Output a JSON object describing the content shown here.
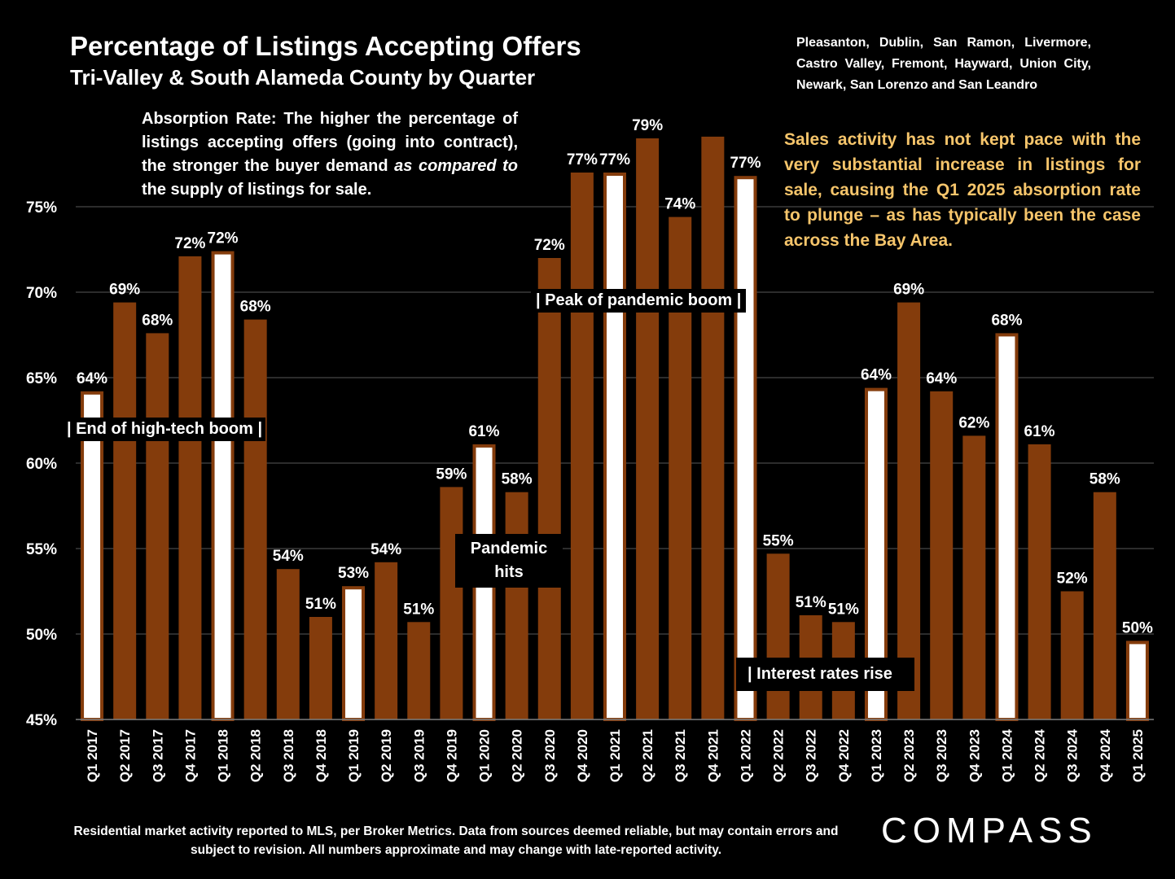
{
  "header": {
    "title": "Percentage of Listings Accepting Offers",
    "subtitle": "Tri-Valley & South Alameda County by Quarter",
    "cities": "Pleasanton, Dublin, San Ramon, Livermore, Castro Valley, Fremont, Hayward, Union City, Newark, San Lorenzo and San Leandro"
  },
  "absorption_note": {
    "part1": "Absorption Rate: The higher the percentage of listings accepting offers (going into contract), the stronger the buyer demand ",
    "emph": "as compared to",
    "part2": " the supply of listings for sale."
  },
  "sales_note": "Sales activity has not kept pace with the very substantial increase in listings for sale, causing the Q1 2025 absorption rate to plunge – as has typically been the case across the Bay Area.",
  "annotations": {
    "end_boom": "|  End of high-tech boom  |",
    "peak": "| Peak of pandemic boom |",
    "pandemic": "Pandemic hits",
    "rates": "| Interest rates rise"
  },
  "footer": "Residential market activity reported to MLS, per Broker Metrics. Data from sources deemed reliable, but may contain errors and subject to revision. All numbers approximate and may change with late-reported activity.",
  "logo": "COMPASS",
  "colors": {
    "bar": "#843c0c",
    "q1_bar": "#ffffff",
    "note": "#f6c56b"
  },
  "chart_data": {
    "type": "bar",
    "categories": [
      "Q1 2017",
      "Q2 2017",
      "Q3 2017",
      "Q4 2017",
      "Q1 2018",
      "Q2 2018",
      "Q3 2018",
      "Q4 2018",
      "Q1 2019",
      "Q2 2019",
      "Q3 2019",
      "Q4 2019",
      "Q1 2020",
      "Q2 2020",
      "Q3 2020",
      "Q4 2020",
      "Q1 2021",
      "Q2 2021",
      "Q3 2021",
      "Q4 2021",
      "Q1 2022",
      "Q2 2022",
      "Q3 2022",
      "Q4 2022",
      "Q1 2023",
      "Q2 2023",
      "Q3 2023",
      "Q4 2023",
      "Q1 2024",
      "Q2 2024",
      "Q3 2024",
      "Q4 2024",
      "Q1 2025"
    ],
    "values": [
      64.2,
      69.4,
      67.6,
      72.1,
      72.4,
      68.4,
      53.8,
      51.0,
      52.8,
      54.2,
      50.7,
      58.6,
      61.1,
      58.3,
      72.0,
      77.0,
      77.0,
      79.0,
      74.4,
      79.1,
      76.8,
      54.7,
      51.1,
      50.7,
      64.4,
      69.4,
      64.2,
      61.6,
      67.6,
      61.1,
      52.5,
      58.3,
      49.6
    ],
    "labels": [
      "64%",
      "69%",
      "68%",
      "72%",
      "72%",
      "68%",
      "54%",
      "51%",
      "53%",
      "54%",
      "51%",
      "59%",
      "61%",
      "58%",
      "72%",
      "77%",
      "77%",
      "79%",
      "74%",
      "",
      "77%",
      "55%",
      "51%",
      "51%",
      "64%",
      "69%",
      "64%",
      "62%",
      "68%",
      "61%",
      "52%",
      "58%",
      "50%"
    ],
    "highlight_q1": true,
    "ylim": [
      45,
      80
    ],
    "yticks": [
      45,
      50,
      55,
      60,
      65,
      70,
      75
    ],
    "ytick_labels": [
      "45%",
      "50%",
      "55%",
      "60%",
      "65%",
      "70%",
      "75%"
    ],
    "grid": true,
    "legend": "none"
  }
}
